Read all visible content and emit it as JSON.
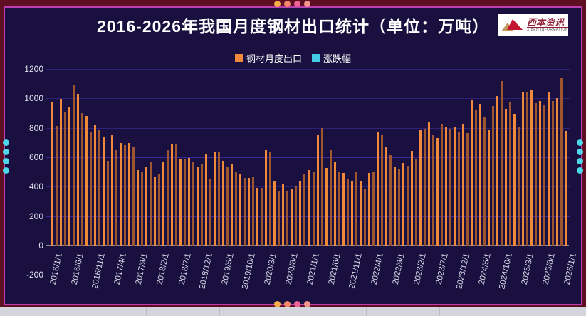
{
  "header": {
    "title": "2016-2026年我国月度钢材出口统计（单位：万吨）",
    "logo": {
      "brand": "西本资讯",
      "subtext": "XIBEN INFORMATION"
    }
  },
  "legend": [
    {
      "label": "钢材月度出口",
      "color": "#ef8a3d"
    },
    {
      "label": "涨跌幅",
      "color": "#45cbe4"
    }
  ],
  "chart_data": {
    "type": "bar",
    "title": "2016-2026年我国月度钢材出口统计（单位：万吨）",
    "x_start": "2016/1/1",
    "x_end": "2026/1/1",
    "x_tick_labels": [
      "2016/1/1",
      "2016/6/1",
      "2016/11/1",
      "2017/4/1",
      "2017/9/1",
      "2018/2/1",
      "2018/7/1",
      "2018/12/1",
      "2019/5/1",
      "2019/10/1",
      "2020/3/1",
      "2020/8/1",
      "2021/1/1",
      "2021/6/1",
      "2021/11/1",
      "2022/4/1",
      "2022/9/1",
      "2023/2/1",
      "2023/7/1",
      "2023/12/1",
      "2024/5/1",
      "2024/10/1",
      "2025/3/1",
      "2025/8/1",
      "2026/1/1"
    ],
    "x_tick_step_months": 5,
    "y_ticks": [
      1200,
      1000,
      800,
      600,
      400,
      200,
      0,
      -200
    ],
    "ylim": [
      -200,
      1200
    ],
    "grid": true,
    "legend_position": "top",
    "series": [
      {
        "name": "钢材月度出口",
        "unit": "万吨",
        "values": [
          974,
          811,
          998,
          908,
          942,
          1094,
          1030,
          901,
          880,
          770,
          816,
          784,
          742,
          575,
          756,
          649,
          698,
          681,
          696,
          674,
          514,
          498,
          535,
          566,
          465,
          485,
          565,
          648,
          688,
          694,
          588,
          588,
          595,
          566,
          530,
          556,
          619,
          456,
          633,
          633,
          574,
          531,
          557,
          501,
          485,
          462,
          458,
          468,
          391,
          390,
          648,
          632,
          440,
          370,
          418,
          368,
          382,
          404,
          440,
          485,
          514,
          496,
          754,
          797,
          527,
          646,
          567,
          505,
          492,
          450,
          436,
          502,
          434,
          389,
          494,
          497,
          776,
          756,
          667,
          615,
          538,
          518,
          559,
          540,
          644,
          584,
          789,
          793,
          836,
          751,
          731,
          828,
          806,
          794,
          801,
          773,
          826,
          765,
          989,
          922,
          963,
          875,
          783,
          949,
          1015,
          1118,
          928,
          974,
          897,
          807,
          1046,
          1046,
          1058,
          968,
          983,
          951,
          1047,
          984,
          1008,
          1137,
          781
        ]
      }
    ],
    "colors": {
      "bar_bright": "#ef8a3d",
      "bar_muted": "#9e5630",
      "secondary": "#45cbe4"
    }
  },
  "frame": {
    "corner_dot_colors": [
      "#f6ac48",
      "#f4876b",
      "#ed6396",
      "#f4948b"
    ],
    "side_dot_color": "#4ed9ea"
  }
}
